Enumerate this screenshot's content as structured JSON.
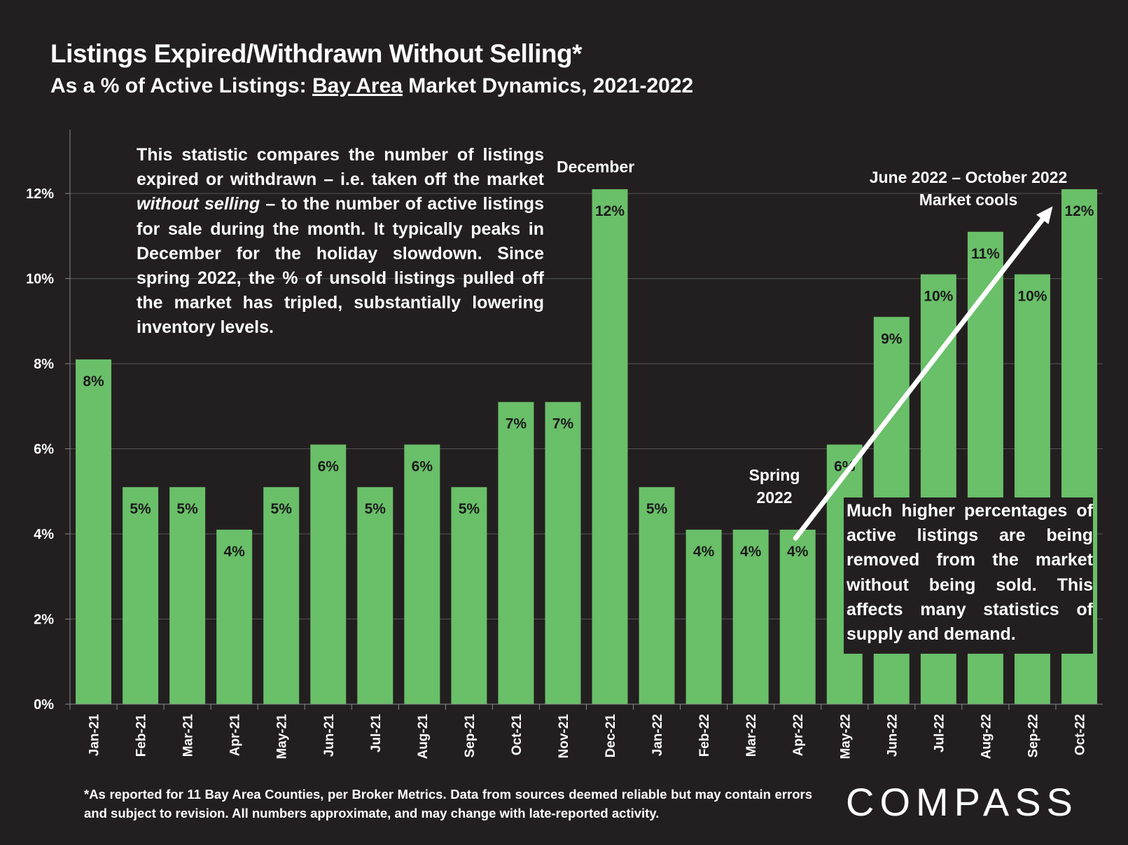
{
  "chart_data": {
    "type": "bar",
    "title": "Listings Expired/Withdrawn Without Selling*",
    "subtitle_parts": [
      "As a % of Active Listings: ",
      "Bay Area",
      " Market Dynamics, 2021-2022"
    ],
    "xlabel": "",
    "ylabel": "",
    "ylim": [
      0,
      13.5
    ],
    "yticks": [
      0,
      2,
      4,
      6,
      8,
      10,
      12
    ],
    "ytick_labels": [
      "0%",
      "2%",
      "4%",
      "6%",
      "8%",
      "10%",
      "12%"
    ],
    "grid": true,
    "categories": [
      "Jan-21",
      "Feb-21",
      "Mar-21",
      "Apr-21",
      "May-21",
      "Jun-21",
      "Jul-21",
      "Aug-21",
      "Sep-21",
      "Oct-21",
      "Nov-21",
      "Dec-21",
      "Jan-22",
      "Feb-22",
      "Mar-22",
      "Apr-22",
      "May-22",
      "Jun-22",
      "Jul-22",
      "Aug-22",
      "Sep-22",
      "Oct-22"
    ],
    "values": [
      8.1,
      5.1,
      5.1,
      4.1,
      5.1,
      6.1,
      5.1,
      6.1,
      5.1,
      7.1,
      7.1,
      12.1,
      5.1,
      4.1,
      4.1,
      4.1,
      6.1,
      9.1,
      10.1,
      11.1,
      10.1,
      12.1
    ],
    "data_labels": [
      "8%",
      "5%",
      "5%",
      "4%",
      "5%",
      "6%",
      "5%",
      "6%",
      "5%",
      "7%",
      "7%",
      "12%",
      "5%",
      "4%",
      "4%",
      "4%",
      "6%",
      "9%",
      "10%",
      "11%",
      "10%",
      "12%"
    ],
    "bar_color": "#6abf69",
    "annotations": {
      "december": "December",
      "spring_line1": "Spring",
      "spring_line2": "2022",
      "june_line1": "June 2022 – October 2022",
      "june_line2": "Market cools"
    },
    "arrow": {
      "from_category": "Apr-22",
      "from_value": 3.9,
      "to_category": "Oct-22",
      "to_value": 11.7
    }
  },
  "notes": {
    "left_before": "This statistic compares the number of listings expired or withdrawn – i.e. taken off the market ",
    "left_italic": "without selling",
    "left_after": " – to the number of active listings for sale during the month. It typically peaks in December for the holiday slowdown. Since spring 2022, the % of unsold listings pulled off the market has tripled, substantially lowering inventory levels.",
    "right": "Much higher percentages of active listings are being removed from the market without being sold. This affects many statistics of supply and demand."
  },
  "footnote": "*As reported for 11 Bay Area Counties, per Broker Metrics. Data from sources deemed reliable but may contain errors and subject to revision. All numbers approximate, and may change with late-reported activity.",
  "logo": "COMPASS"
}
